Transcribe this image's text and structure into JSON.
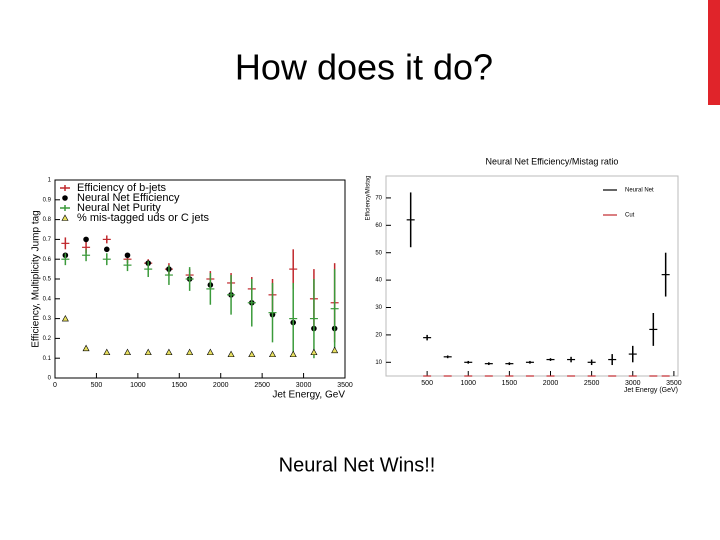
{
  "title": "How does it do?",
  "caption": "Neural Net Wins!!",
  "chart_data": [
    {
      "type": "scatter",
      "xlabel": "Jet Energy, GeV",
      "ylabel": "Efficiency, Multiplicity Jump tag",
      "xlim": [
        0,
        3500
      ],
      "ylim": [
        0,
        1
      ],
      "xticks": [
        0,
        500,
        1000,
        1500,
        2000,
        2500,
        3000,
        3500
      ],
      "yticks": [
        0,
        0.1,
        0.2,
        0.3,
        0.4,
        0.5,
        0.6,
        0.7,
        0.8,
        0.9,
        1
      ],
      "legend": "top-left",
      "x": [
        125,
        375,
        625,
        875,
        1125,
        1375,
        1625,
        1875,
        2125,
        2375,
        2625,
        2875,
        3125,
        3375
      ],
      "series": [
        {
          "name": "Efficiency of b-jets",
          "color": "#c0282d",
          "marker": "plus",
          "values": [
            0.68,
            0.66,
            0.7,
            0.6,
            0.58,
            0.55,
            0.52,
            0.5,
            0.48,
            0.45,
            0.42,
            0.55,
            0.4,
            0.38
          ],
          "errors": [
            0.03,
            0.03,
            0.02,
            0.02,
            0.02,
            0.03,
            0.03,
            0.04,
            0.05,
            0.06,
            0.08,
            0.1,
            0.15,
            0.2
          ]
        },
        {
          "name": "Neural Net Efficiency",
          "color": "#000000",
          "marker": "dot",
          "values": [
            0.62,
            0.7,
            0.65,
            0.62,
            0.58,
            0.55,
            0.5,
            0.47,
            0.42,
            0.38,
            0.32,
            0.28,
            0.25,
            0.25
          ]
        },
        {
          "name": "Neural Net Purity",
          "color": "#3a9a3a",
          "marker": "plus",
          "values": [
            0.6,
            0.62,
            0.6,
            0.57,
            0.55,
            0.52,
            0.5,
            0.45,
            0.42,
            0.38,
            0.33,
            0.3,
            0.3,
            0.35
          ],
          "errors": [
            0.03,
            0.03,
            0.03,
            0.03,
            0.04,
            0.05,
            0.06,
            0.08,
            0.1,
            0.12,
            0.15,
            0.18,
            0.2,
            0.2
          ]
        },
        {
          "name": "% mis-tagged uds or C jets",
          "color": "#e8e060",
          "marker": "triangle",
          "values": [
            0.3,
            0.15,
            0.13,
            0.13,
            0.13,
            0.13,
            0.13,
            0.13,
            0.12,
            0.12,
            0.12,
            0.12,
            0.13,
            0.14
          ]
        }
      ]
    },
    {
      "type": "scatter",
      "title": "Neural Net Efficiency/Mistag ratio",
      "xlabel": "Jet Energy (GeV)",
      "ylabel": "Efficiency/Mistag",
      "xlim": [
        0,
        3550
      ],
      "ylim": [
        5,
        78
      ],
      "xticks": [
        500,
        1000,
        1500,
        2000,
        2500,
        3000,
        3500
      ],
      "yticks": [
        10,
        20,
        30,
        40,
        50,
        60,
        70
      ],
      "legend": "top-right",
      "x": [
        300,
        500,
        750,
        1000,
        1250,
        1500,
        1750,
        2000,
        2250,
        2500,
        2750,
        3000,
        3250,
        3400
      ],
      "series": [
        {
          "name": "Neural Net",
          "color": "#000000",
          "marker": "plus",
          "values": [
            62,
            19,
            12,
            10,
            9.5,
            9.5,
            10,
            11,
            11,
            10,
            11,
            13,
            22,
            42
          ],
          "errors": [
            10,
            1,
            0.5,
            0.5,
            0.5,
            0.5,
            0.5,
            0.5,
            1,
            1,
            2,
            3,
            6,
            8
          ]
        },
        {
          "name": "Cut",
          "color": "#c0282d",
          "marker": "plus",
          "values": [
            null,
            5,
            5,
            5,
            5,
            5,
            5,
            5,
            5,
            5,
            5,
            5,
            5,
            5
          ]
        }
      ]
    }
  ]
}
